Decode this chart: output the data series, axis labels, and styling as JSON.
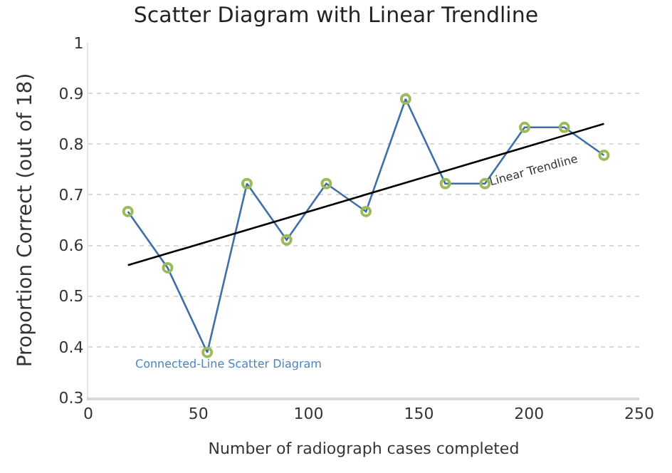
{
  "chart_data": {
    "type": "line",
    "title": "Scatter Diagram with Linear Trendline",
    "xlabel": "Number of radiograph cases completed",
    "ylabel": "Proportion Correct (out of 18)",
    "xlim": [
      0,
      250
    ],
    "xticks": [
      0,
      50,
      100,
      150,
      200,
      250
    ],
    "ylim": [
      0.3,
      1
    ],
    "yticks": [
      0.3,
      0.4,
      0.5,
      0.6,
      0.7,
      0.8,
      0.9,
      1
    ],
    "grid": "y",
    "series": [
      {
        "color": "#3f6fa8",
        "marker": "none",
        "line_style": "solid",
        "x": [
          18,
          36,
          54,
          72,
          90,
          108,
          126,
          144,
          162,
          180,
          198,
          216,
          234
        ],
        "values": [
          0.667,
          0.556,
          0.389,
          0.722,
          0.611,
          0.722,
          0.667,
          0.889,
          0.722,
          0.722,
          0.833,
          0.833,
          0.778
        ]
      },
      {
        "type": "scatter",
        "color": "#9bbb59",
        "marker": "circle",
        "x": [
          18,
          36,
          54,
          72,
          90,
          108,
          126,
          144,
          162,
          180,
          198,
          216,
          234
        ],
        "values": [
          0.667,
          0.556,
          0.389,
          0.722,
          0.611,
          0.722,
          0.667,
          0.889,
          0.722,
          0.722,
          0.833,
          0.833,
          0.778
        ]
      },
      {
        "type": "line",
        "color": "#000000",
        "marker": "none",
        "line_style": "solid",
        "x": [
          18,
          234
        ],
        "values": [
          0.561,
          0.84
        ]
      }
    ],
    "annotations": [
      "Connected-Line Scatter Diagram",
      "Linear Trendline"
    ]
  }
}
